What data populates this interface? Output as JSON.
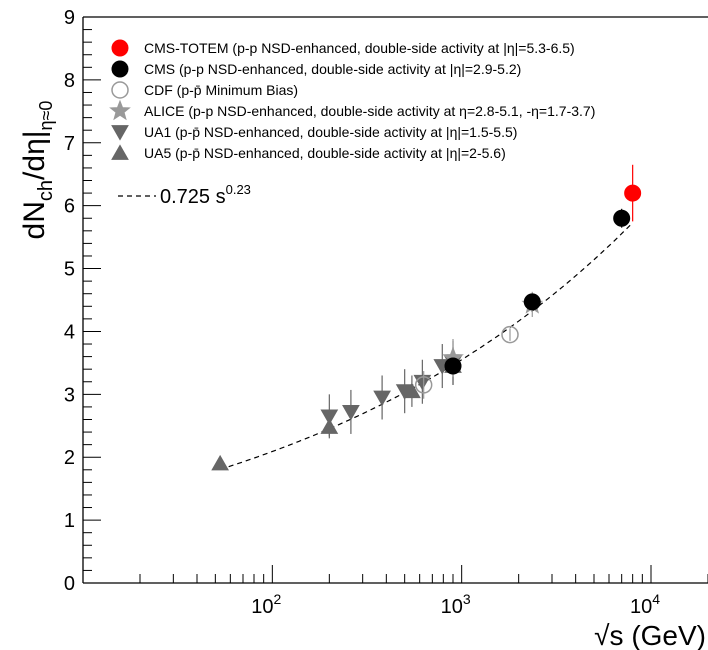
{
  "chart_data": {
    "type": "scatter",
    "xscale": "log",
    "xlim": [
      10,
      20000
    ],
    "ylim": [
      0,
      9
    ],
    "xlabel": "√s (GeV)",
    "ylabel": {
      "main": "dN",
      "sub": "ch",
      "mid": "/dη|",
      "sub2": "η≈0"
    },
    "yticks": [
      "0",
      "1",
      "2",
      "3",
      "4",
      "5",
      "6",
      "7",
      "8",
      "9"
    ],
    "xticks": [
      {
        "value": 100,
        "base": "10",
        "exp": "2"
      },
      {
        "value": 1000,
        "base": "10",
        "exp": "3"
      },
      {
        "value": 10000,
        "base": "10",
        "exp": "4"
      }
    ],
    "fit": {
      "label": "0.725 s",
      "exponent_label": "0.23",
      "a": 0.725,
      "b": 0.23,
      "xrange": [
        53,
        7800
      ]
    },
    "legend_position": "top-left",
    "series": [
      {
        "name": "CMS-TOTEM (p-p NSD-enhanced, double-side activity at |η|=5.3-6.5)",
        "marker": "circle",
        "color": "#ff0000",
        "fill": true,
        "points": [
          {
            "x": 8000,
            "y": 6.2,
            "err": 0.45
          }
        ]
      },
      {
        "name": "CMS (p-p NSD-enhanced, double-side activity at |η|=2.9-5.2)",
        "marker": "circle",
        "color": "#000000",
        "fill": true,
        "points": [
          {
            "x": 900,
            "y": 3.45,
            "err": 0.1
          },
          {
            "x": 2360,
            "y": 4.47,
            "err": 0.1
          },
          {
            "x": 7000,
            "y": 5.8,
            "err": 0.15
          }
        ]
      },
      {
        "name": "CDF (p-p̄ Minimum Bias)",
        "marker": "circle",
        "color": "#999999",
        "fill": false,
        "points": [
          {
            "x": 630,
            "y": 3.15,
            "err": 0.22
          },
          {
            "x": 1800,
            "y": 3.95,
            "err": 0.1
          }
        ]
      },
      {
        "name": "ALICE (p-p NSD-enhanced, double-side activity at η=2.8-5.1, -η=1.7-3.7)",
        "marker": "star",
        "color": "#999999",
        "fill": true,
        "points": [
          {
            "x": 900,
            "y": 3.58,
            "err": 0.3
          },
          {
            "x": 2360,
            "y": 4.43,
            "err": 0.2
          }
        ]
      },
      {
        "name": "UA1 (p-p̄ NSD-enhanced, double-side activity at |η|=1.5-5.5)",
        "marker": "triangle-down",
        "color": "#666666",
        "fill": true,
        "points": [
          {
            "x": 200,
            "y": 2.65,
            "err": 0.35
          },
          {
            "x": 260,
            "y": 2.72,
            "err": 0.35
          },
          {
            "x": 380,
            "y": 2.95,
            "err": 0.35
          },
          {
            "x": 500,
            "y": 3.05,
            "err": 0.35
          },
          {
            "x": 620,
            "y": 3.2,
            "err": 0.35
          },
          {
            "x": 790,
            "y": 3.45,
            "err": 0.35
          },
          {
            "x": 900,
            "y": 3.5,
            "err": 0.35
          }
        ]
      },
      {
        "name": "UA5 (p-p̄ NSD-enhanced, double-side activity at |η|=2-5.6)",
        "marker": "triangle-up",
        "color": "#666666",
        "fill": true,
        "points": [
          {
            "x": 53,
            "y": 1.9,
            "err": 0.05
          },
          {
            "x": 200,
            "y": 2.48,
            "err": 0.15
          },
          {
            "x": 546,
            "y": 3.05,
            "err": 0.25
          },
          {
            "x": 900,
            "y": 3.45,
            "err": 0.3
          }
        ]
      }
    ]
  }
}
